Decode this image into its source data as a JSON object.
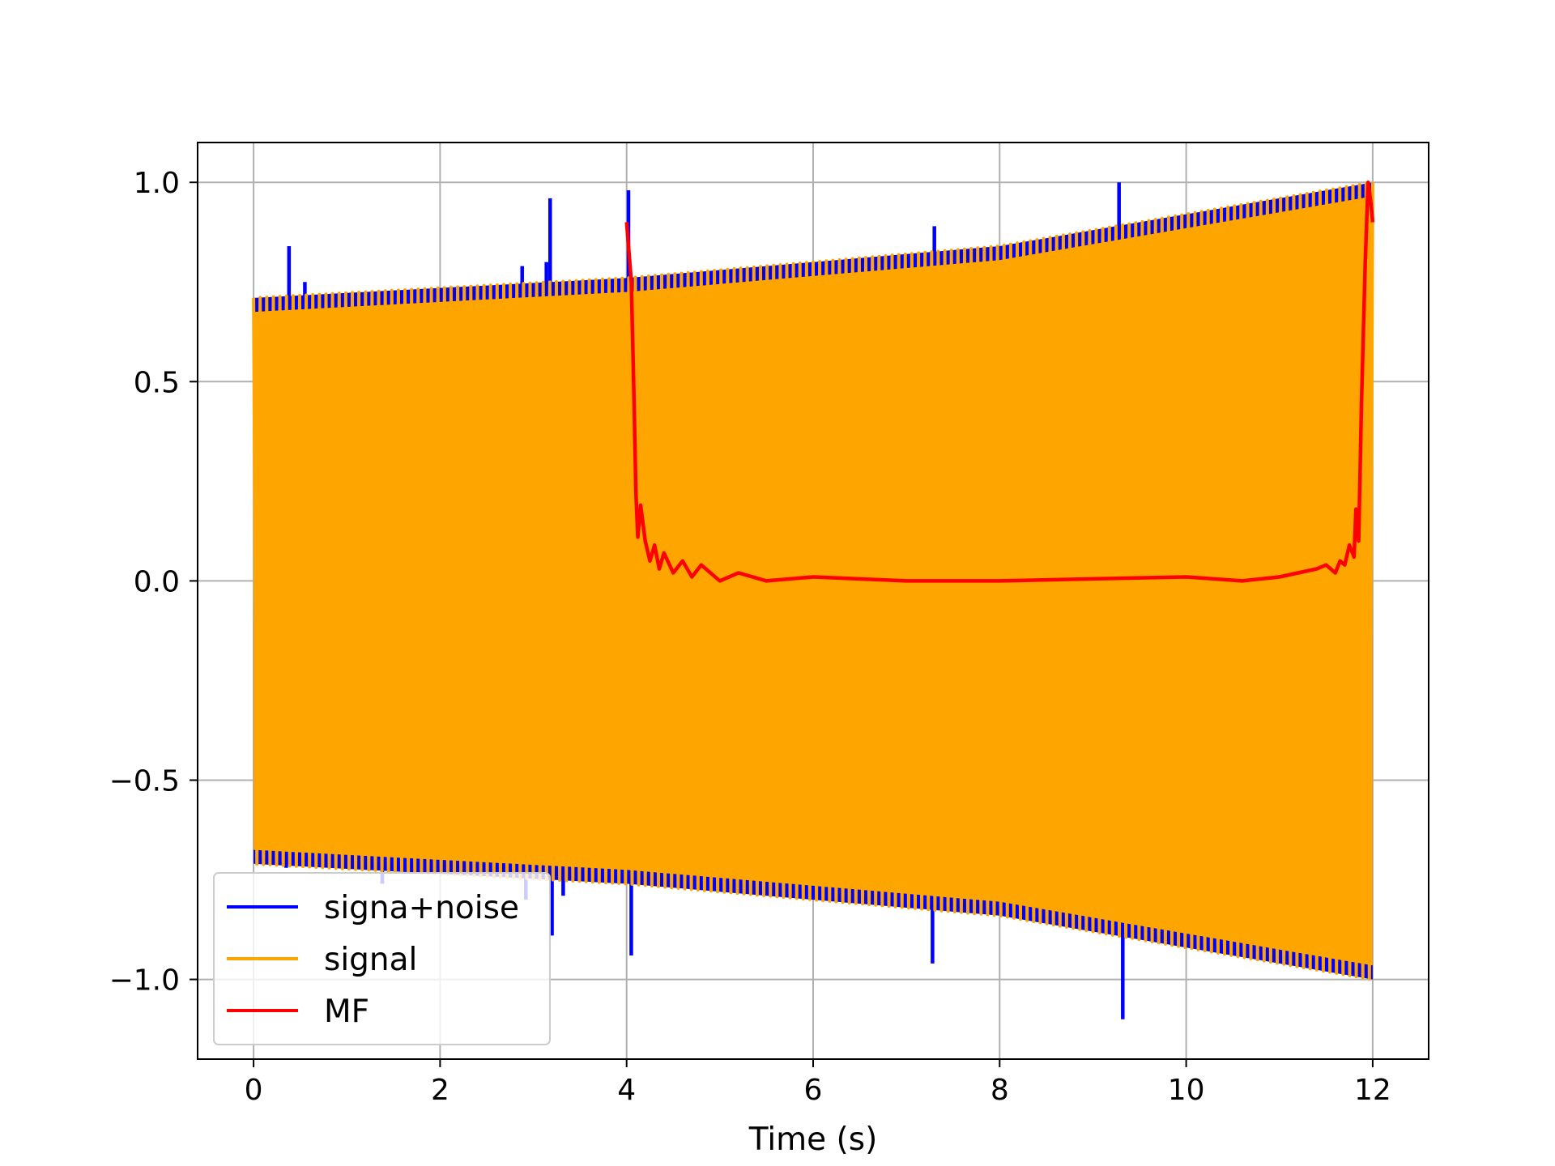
{
  "chart_data": {
    "type": "line",
    "title": "",
    "xlabel": "Time (s)",
    "ylabel": "",
    "xlim": [
      -0.6,
      12.6
    ],
    "ylim": [
      -1.2,
      1.1
    ],
    "xticks": [
      0,
      2,
      4,
      6,
      8,
      10,
      12
    ],
    "xtick_labels": [
      "0",
      "2",
      "4",
      "6",
      "8",
      "10",
      "12"
    ],
    "yticks": [
      -1.0,
      -0.5,
      0.0,
      0.5,
      1.0
    ],
    "ytick_labels": [
      "−1.0",
      "−0.5",
      "0.0",
      "0.5",
      "1.0"
    ],
    "grid": true,
    "legend": {
      "position": "lower-left",
      "entries": [
        "signa+noise",
        "signal",
        "MF"
      ]
    },
    "colors": {
      "noisy": "#0000ff",
      "signal": "#ffa500",
      "mf": "#ff0000",
      "grid": "#b0b0b0"
    },
    "series": [
      {
        "name": "signa+noise",
        "kind": "oscillation",
        "x_range": [
          0,
          12
        ],
        "envelope": {
          "x": [
            0,
            4,
            8,
            12
          ],
          "y": [
            0.71,
            0.76,
            0.84,
            1.0
          ]
        },
        "spikes": [
          {
            "x": 0.38,
            "y": 0.84
          },
          {
            "x": 0.55,
            "y": 0.75
          },
          {
            "x": 1.04,
            "y": 0.72
          },
          {
            "x": 2.88,
            "y": 0.79
          },
          {
            "x": 3.14,
            "y": 0.8
          },
          {
            "x": 3.18,
            "y": 0.96
          },
          {
            "x": 4.02,
            "y": 0.98
          },
          {
            "x": 7.3,
            "y": 0.89
          },
          {
            "x": 9.28,
            "y": 1.0
          },
          {
            "x": 0.35,
            "y": -0.72
          },
          {
            "x": 1.38,
            "y": -0.76
          },
          {
            "x": 2.92,
            "y": -0.8
          },
          {
            "x": 3.2,
            "y": -0.89
          },
          {
            "x": 3.32,
            "y": -0.79
          },
          {
            "x": 4.05,
            "y": -0.94
          },
          {
            "x": 7.28,
            "y": -0.96
          },
          {
            "x": 9.32,
            "y": -1.1
          }
        ]
      },
      {
        "name": "signal",
        "kind": "oscillation",
        "x_range": [
          0,
          12
        ],
        "envelope": {
          "x": [
            0,
            4,
            8,
            12
          ],
          "y": [
            0.71,
            0.76,
            0.84,
            1.0
          ]
        },
        "cycles": 170
      },
      {
        "name": "MF",
        "kind": "line",
        "x": [
          4.0,
          4.05,
          4.08,
          4.1,
          4.12,
          4.15,
          4.2,
          4.25,
          4.3,
          4.35,
          4.4,
          4.5,
          4.6,
          4.7,
          4.8,
          5.0,
          5.2,
          5.5,
          6.0,
          7.0,
          8.0,
          9.0,
          10.0,
          10.6,
          11.0,
          11.2,
          11.4,
          11.5,
          11.6,
          11.65,
          11.7,
          11.75,
          11.8,
          11.82,
          11.85,
          11.88,
          11.92,
          11.95,
          11.98,
          12.0
        ],
        "y": [
          0.9,
          0.75,
          0.45,
          0.22,
          0.11,
          0.19,
          0.1,
          0.05,
          0.09,
          0.03,
          0.07,
          0.02,
          0.05,
          0.01,
          0.04,
          0.0,
          0.02,
          0.0,
          0.01,
          0.0,
          0.0,
          0.005,
          0.01,
          0.0,
          0.01,
          0.02,
          0.03,
          0.04,
          0.02,
          0.05,
          0.04,
          0.09,
          0.06,
          0.18,
          0.1,
          0.45,
          0.8,
          1.0,
          0.95,
          0.9
        ]
      }
    ]
  }
}
